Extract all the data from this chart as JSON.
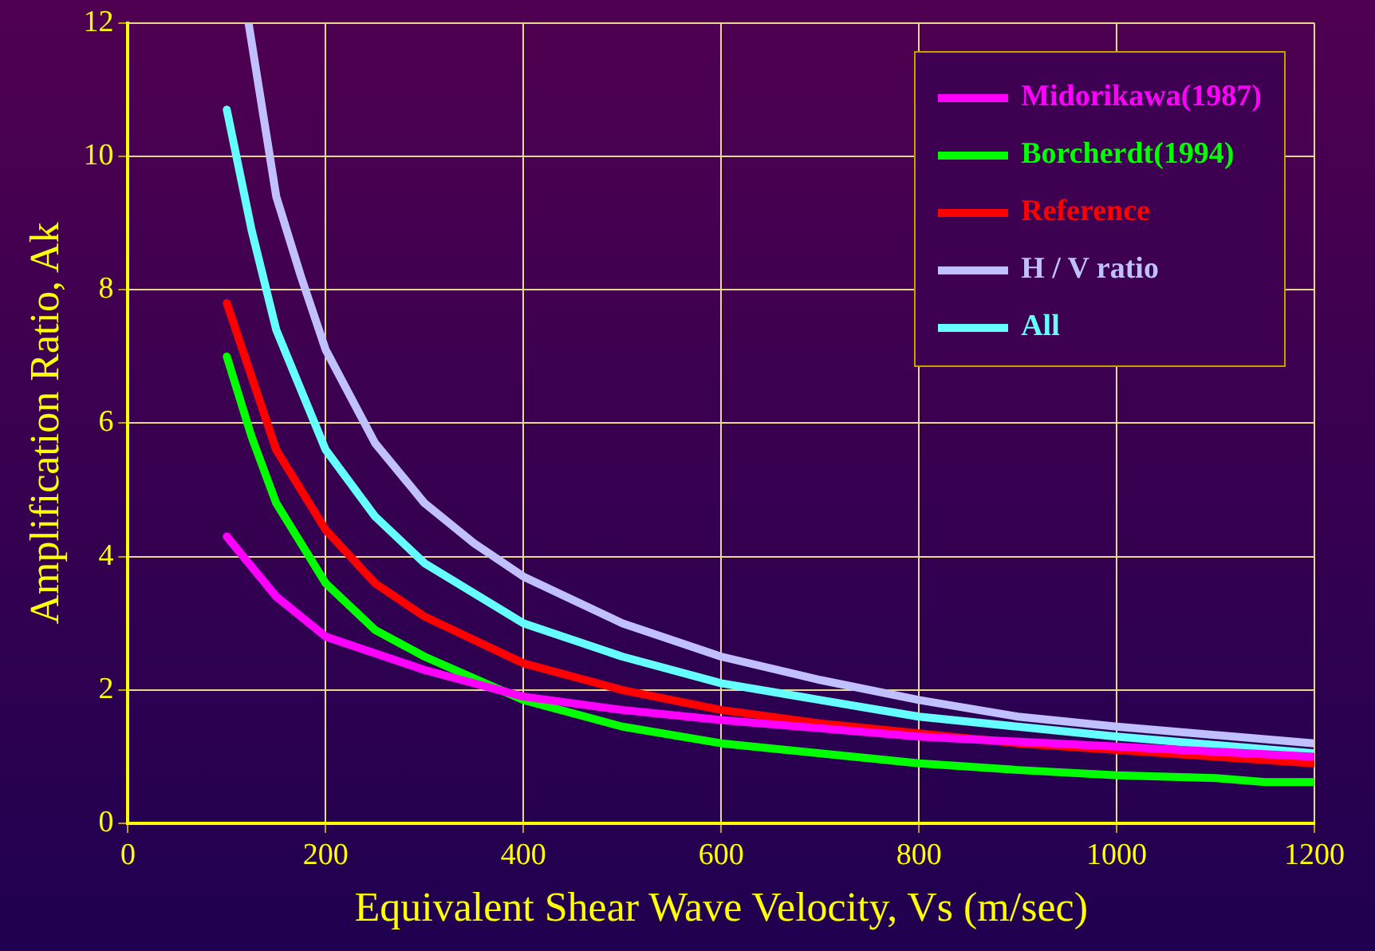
{
  "chart_data": {
    "type": "line",
    "xlabel": "Equivalent Shear Wave Velocity, Vs (m/sec)",
    "ylabel": "Amplification Ratio, Ak",
    "xlim": [
      0,
      1200
    ],
    "xticks": [
      0,
      200,
      400,
      600,
      800,
      1000,
      1200
    ],
    "ylim": [
      0,
      12
    ],
    "yticks": [
      0,
      2,
      4,
      6,
      8,
      10,
      12
    ],
    "grid": true,
    "legend": "top right",
    "marker": "none",
    "line_style": "solid",
    "series": [
      {
        "name": "Midorikawa(1987)",
        "color": "#ff00ff",
        "x": [
          100,
          150,
          200,
          300,
          400,
          500,
          600,
          800,
          1000,
          1200
        ],
        "values": [
          4.3,
          3.4,
          2.8,
          2.3,
          1.9,
          1.7,
          1.55,
          1.3,
          1.15,
          1.0
        ]
      },
      {
        "name": "Borcherdt(1994)",
        "color": "#00ff00",
        "x": [
          100,
          125,
          150,
          200,
          250,
          300,
          400,
          500,
          600,
          700,
          800,
          900,
          1000,
          1100,
          1150,
          1200
        ],
        "values": [
          7.0,
          5.8,
          4.8,
          3.6,
          2.9,
          2.5,
          1.85,
          1.45,
          1.2,
          1.05,
          0.9,
          0.8,
          0.72,
          0.68,
          0.62,
          0.62
        ]
      },
      {
        "name": "Reference",
        "color": "#ff0000",
        "x": [
          100,
          150,
          200,
          250,
          300,
          400,
          500,
          600,
          700,
          800,
          900,
          1000,
          1200
        ],
        "values": [
          7.8,
          5.6,
          4.4,
          3.6,
          3.1,
          2.4,
          2.0,
          1.7,
          1.5,
          1.35,
          1.2,
          1.1,
          0.9
        ]
      },
      {
        "name": "H / V ratio",
        "color": "#c0c0ff",
        "x": [
          122,
          150,
          175,
          200,
          250,
          300,
          350,
          400,
          500,
          600,
          700,
          800,
          900,
          1000,
          1200
        ],
        "values": [
          12,
          9.4,
          8.2,
          7.1,
          5.7,
          4.8,
          4.2,
          3.7,
          3.0,
          2.5,
          2.15,
          1.85,
          1.6,
          1.45,
          1.2
        ]
      },
      {
        "name": "All",
        "color": "#66ffff",
        "x": [
          100,
          125,
          150,
          200,
          250,
          300,
          400,
          500,
          600,
          700,
          800,
          900,
          1000,
          1200
        ],
        "values": [
          10.7,
          8.9,
          7.4,
          5.6,
          4.6,
          3.9,
          3.0,
          2.5,
          2.1,
          1.85,
          1.6,
          1.45,
          1.3,
          1.05
        ]
      }
    ]
  }
}
